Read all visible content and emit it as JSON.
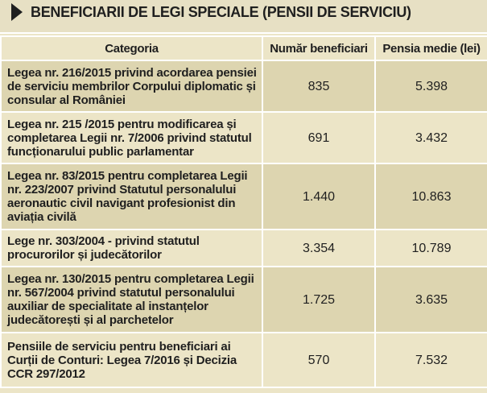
{
  "title": "BENEFICIARII DE LEGI SPECIALE (PENSII DE SERVICIU)",
  "columns": {
    "category": "Categoria",
    "beneficiaries": "Număr beneficiari",
    "average_pension": "Pensia medie (lei)"
  },
  "rows": [
    {
      "category": "Legea nr. 216/2015 privind acordarea pensiei de serviciu membrilor Corpului diplomatic și consular al României",
      "beneficiaries": "835",
      "average_pension": "5.398"
    },
    {
      "category": "Legea nr. 215 /2015 pentru modificarea și completarea Legii nr. 7/2006 privind statutul funcționarului public parlamentar",
      "beneficiaries": "691",
      "average_pension": "3.432"
    },
    {
      "category": "Legea nr. 83/2015 pentru completarea Legii nr. 223/2007 privind Statutul personalului aeronautic civil navigant profesionist din aviația civilă",
      "beneficiaries": "1.440",
      "average_pension": "10.863"
    },
    {
      "category": "Lege nr. 303/2004 - privind statutul procurorilor și judecătorilor",
      "beneficiaries": "3.354",
      "average_pension": "10.789"
    },
    {
      "category": "Legea nr. 130/2015 pentru completarea Legii nr. 567/2004 privind statutul personalului auxiliar de specialitate al instanțelor judecătorești și al parchetelor",
      "beneficiaries": "1.725",
      "average_pension": "3.635"
    },
    {
      "category": "Pensiile de serviciu pentru beneficiari ai Curții de Conturi: Legea 7/2016 și Decizia CCR 297/2012",
      "beneficiaries": "570",
      "average_pension": "7.532"
    }
  ]
}
